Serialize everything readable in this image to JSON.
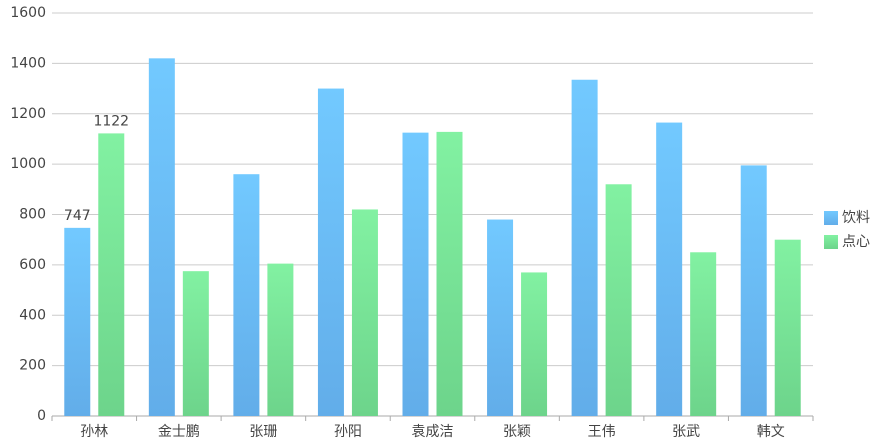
{
  "chart_data": {
    "type": "bar",
    "categories": [
      "孙林",
      "金士鹏",
      "张珊",
      "孙阳",
      "袁成洁",
      "张颖",
      "王伟",
      "张武",
      "韩文"
    ],
    "series": [
      {
        "name": "饮料",
        "color": [
          "#72c9ff",
          "#62ade9"
        ],
        "values": [
          747,
          1420,
          960,
          1300,
          1125,
          780,
          1335,
          1165,
          995
        ]
      },
      {
        "name": "点心",
        "color": [
          "#82f1a2",
          "#6dd48b"
        ],
        "values": [
          1122,
          575,
          605,
          820,
          1128,
          570,
          920,
          650,
          700
        ]
      }
    ],
    "label_category_index": 0,
    "label_color": "#e8102a",
    "ylim": [
      0,
      1600
    ],
    "yticks": [
      0,
      200,
      400,
      600,
      800,
      1000,
      1200,
      1400,
      1600
    ],
    "grid": true,
    "legend": "right"
  }
}
